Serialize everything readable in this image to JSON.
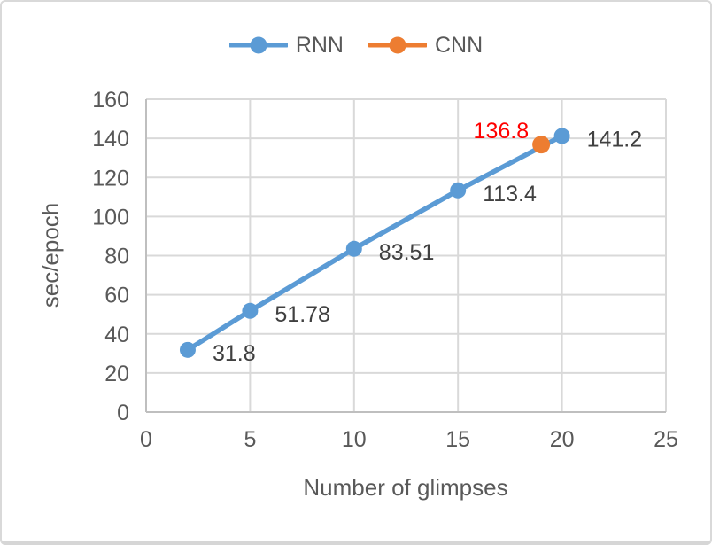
{
  "chart": {
    "legend": [
      {
        "label": "RNN",
        "color": "#5B9BD5"
      },
      {
        "label": "CNN",
        "color": "#ED7D31"
      }
    ]
  },
  "chart_data": {
    "type": "line",
    "title": "",
    "xlabel": "Number of glimpses",
    "ylabel": "sec/epoch",
    "xlim": [
      0,
      25
    ],
    "ylim": [
      0,
      160
    ],
    "x_ticks": [
      0,
      5,
      10,
      15,
      20,
      25
    ],
    "y_ticks": [
      0,
      20,
      40,
      60,
      80,
      100,
      120,
      140,
      160
    ],
    "grid": true,
    "legend_position": "top",
    "styles": {
      "gridline_color": "#D9D9D9",
      "axis_line_color": "#BFBFBF",
      "tick_label_color": "#595959",
      "axis_title_color": "#595959",
      "data_label_color": "#404040",
      "cnn_label_color": "#FF0000"
    },
    "series": [
      {
        "name": "RNN",
        "color": "#5B9BD5",
        "draw_line": true,
        "marker_radius": 9,
        "x": [
          2,
          5,
          10,
          15,
          20
        ],
        "y": [
          31.8,
          51.78,
          83.51,
          113.4,
          141.2
        ],
        "labels": [
          "31.8",
          "51.78",
          "83.51",
          "113.4",
          "141.2"
        ],
        "label_color": "#404040",
        "label_position": "right"
      },
      {
        "name": "CNN",
        "color": "#ED7D31",
        "draw_line": false,
        "marker_radius": 10,
        "x": [
          19
        ],
        "y": [
          136.8
        ],
        "labels": [
          "136.8"
        ],
        "label_color": "#FF0000",
        "label_position": "above-left"
      }
    ]
  }
}
